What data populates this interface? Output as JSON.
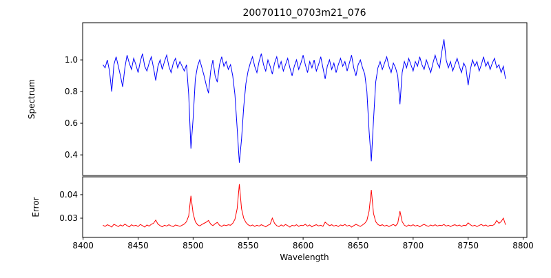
{
  "figure": {
    "title": "20070110_0703m21_076",
    "xlabel": "Wavelength",
    "xlim": [
      8399.6,
      8803.4
    ],
    "xticks": [
      8400,
      8450,
      8500,
      8550,
      8600,
      8650,
      8700,
      8750,
      8800
    ],
    "xtick_labels": [
      "8400",
      "8450",
      "8500",
      "8550",
      "8600",
      "8650",
      "8700",
      "8750",
      "8800"
    ]
  },
  "chart_data": [
    {
      "type": "line",
      "name": "spectrum",
      "ylabel": "Spectrum",
      "line_color": "#0000ff",
      "ylim": [
        0.27,
        1.235
      ],
      "yticks": [
        0.4,
        0.6,
        0.8,
        1.0
      ],
      "ytick_labels": [
        "0.4",
        "0.6",
        "0.8",
        "1.0"
      ],
      "x_start": 8418,
      "x_step": 2,
      "absorption_line_centers": [
        8498,
        8542,
        8662
      ],
      "values": [
        0.97,
        0.95,
        1.0,
        0.93,
        0.8,
        0.97,
        1.02,
        0.96,
        0.9,
        0.83,
        0.95,
        1.03,
        0.98,
        0.94,
        1.01,
        0.97,
        0.92,
        0.99,
        1.04,
        0.96,
        0.93,
        0.98,
        1.02,
        0.95,
        0.87,
        0.96,
        1.0,
        0.94,
        0.99,
        1.03,
        0.96,
        0.92,
        0.98,
        1.01,
        0.95,
        0.99,
        0.96,
        0.93,
        0.97,
        0.78,
        0.44,
        0.63,
        0.88,
        0.96,
        1.0,
        0.95,
        0.9,
        0.84,
        0.79,
        0.93,
        1.0,
        0.9,
        0.86,
        0.97,
        1.02,
        0.96,
        0.99,
        0.94,
        0.97,
        0.9,
        0.78,
        0.57,
        0.35,
        0.5,
        0.7,
        0.85,
        0.93,
        0.98,
        1.02,
        0.96,
        0.92,
        0.99,
        1.04,
        0.97,
        0.93,
        1.0,
        0.96,
        0.91,
        0.98,
        1.02,
        0.95,
        0.99,
        0.93,
        0.97,
        1.01,
        0.95,
        0.9,
        0.96,
        1.0,
        0.94,
        0.98,
        1.03,
        0.97,
        0.92,
        0.99,
        0.95,
        1.0,
        0.93,
        0.97,
        1.02,
        0.95,
        0.88,
        0.96,
        1.0,
        0.94,
        0.98,
        0.92,
        0.97,
        1.01,
        0.96,
        0.99,
        0.93,
        0.98,
        1.03,
        0.95,
        0.9,
        0.97,
        1.0,
        0.95,
        0.91,
        0.8,
        0.55,
        0.36,
        0.62,
        0.86,
        0.95,
        0.99,
        0.94,
        0.98,
        1.02,
        0.96,
        0.92,
        0.98,
        0.95,
        0.9,
        0.72,
        0.92,
        0.99,
        0.95,
        1.01,
        0.97,
        0.93,
        0.99,
        0.96,
        1.02,
        0.97,
        0.94,
        1.0,
        0.96,
        0.92,
        0.98,
        1.03,
        0.98,
        0.95,
        1.05,
        1.13,
        1.0,
        0.95,
        0.99,
        0.93,
        0.97,
        1.01,
        0.96,
        0.92,
        0.98,
        0.95,
        0.84,
        0.94,
        1.0,
        0.96,
        0.99,
        0.93,
        0.97,
        1.02,
        0.96,
        0.99,
        0.94,
        0.98,
        1.01,
        0.95,
        0.97,
        0.92,
        0.96,
        0.88
      ]
    },
    {
      "type": "line",
      "name": "error",
      "ylabel": "Error",
      "line_color": "#ff0000",
      "ylim": [
        0.0218,
        0.0476
      ],
      "yticks": [
        0.03,
        0.04
      ],
      "ytick_labels": [
        "0.03",
        "0.04"
      ],
      "x_start": 8418,
      "x_step": 2,
      "peak_centers": [
        8498,
        8542,
        8662
      ],
      "values": [
        0.027,
        0.0265,
        0.0272,
        0.0268,
        0.0262,
        0.0274,
        0.0269,
        0.0264,
        0.0271,
        0.0266,
        0.0275,
        0.0268,
        0.0263,
        0.0272,
        0.0267,
        0.027,
        0.0264,
        0.0273,
        0.0268,
        0.0262,
        0.0271,
        0.0266,
        0.0274,
        0.0278,
        0.0292,
        0.0275,
        0.0268,
        0.0263,
        0.027,
        0.0266,
        0.0272,
        0.0267,
        0.0264,
        0.0271,
        0.0268,
        0.0265,
        0.027,
        0.0275,
        0.0285,
        0.031,
        0.0395,
        0.032,
        0.0285,
        0.0272,
        0.0267,
        0.0273,
        0.0278,
        0.0283,
        0.029,
        0.0275,
        0.0268,
        0.0276,
        0.0282,
        0.027,
        0.0265,
        0.0271,
        0.0268,
        0.0272,
        0.027,
        0.0278,
        0.0295,
        0.034,
        0.0445,
        0.034,
        0.03,
        0.0282,
        0.0272,
        0.0267,
        0.0271,
        0.0265,
        0.027,
        0.0266,
        0.0272,
        0.0268,
        0.0263,
        0.027,
        0.0274,
        0.03,
        0.0278,
        0.0268,
        0.0264,
        0.0271,
        0.0266,
        0.0273,
        0.0268,
        0.0262,
        0.027,
        0.0267,
        0.0272,
        0.0265,
        0.027,
        0.0268,
        0.0274,
        0.0266,
        0.0271,
        0.0263,
        0.0269,
        0.0272,
        0.0267,
        0.027,
        0.0265,
        0.0283,
        0.0275,
        0.0268,
        0.0272,
        0.0266,
        0.027,
        0.0264,
        0.0271,
        0.0268,
        0.0273,
        0.0266,
        0.027,
        0.0262,
        0.0268,
        0.0274,
        0.0269,
        0.0265,
        0.0271,
        0.0278,
        0.029,
        0.033,
        0.042,
        0.032,
        0.0285,
        0.0273,
        0.0268,
        0.0272,
        0.0266,
        0.027,
        0.0264,
        0.0269,
        0.0273,
        0.0267,
        0.0278,
        0.033,
        0.0285,
        0.027,
        0.0265,
        0.0271,
        0.0267,
        0.0272,
        0.0266,
        0.027,
        0.0263,
        0.0269,
        0.0274,
        0.0268,
        0.0265,
        0.0271,
        0.0267,
        0.0272,
        0.0266,
        0.027,
        0.0268,
        0.0273,
        0.0266,
        0.027,
        0.0264,
        0.0269,
        0.0272,
        0.0267,
        0.0271,
        0.0265,
        0.027,
        0.0268,
        0.028,
        0.0272,
        0.0266,
        0.027,
        0.0264,
        0.0269,
        0.0273,
        0.0267,
        0.0271,
        0.0265,
        0.027,
        0.0268,
        0.0274,
        0.029,
        0.0278,
        0.0285,
        0.03,
        0.0272
      ]
    }
  ]
}
